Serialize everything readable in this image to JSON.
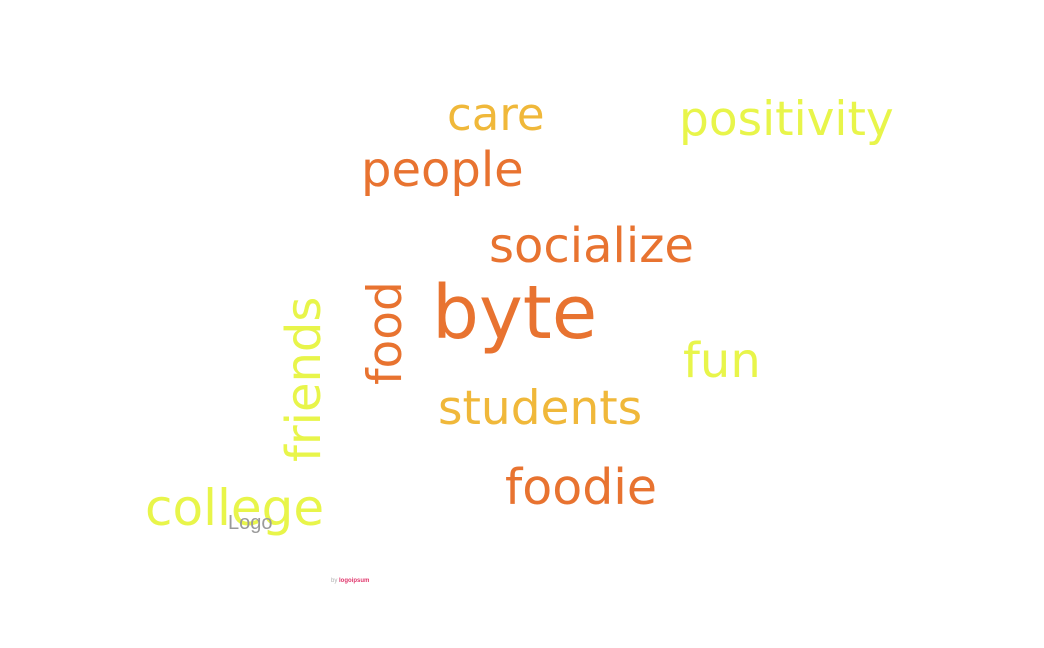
{
  "words": {
    "care": "care",
    "positivity": "positivity",
    "people": "people",
    "socialize": "socialize",
    "byte": "byte",
    "food": "food",
    "friends": "friends",
    "fun": "fun",
    "students": "students",
    "foodie": "foodie",
    "college": "college"
  },
  "colors": {
    "orange": "#e87330",
    "amber": "#f0b83a",
    "lime": "#e8f54a"
  },
  "logo": {
    "text": "Logo"
  },
  "credit": {
    "prefix": "by",
    "brand": "logoipsum"
  }
}
